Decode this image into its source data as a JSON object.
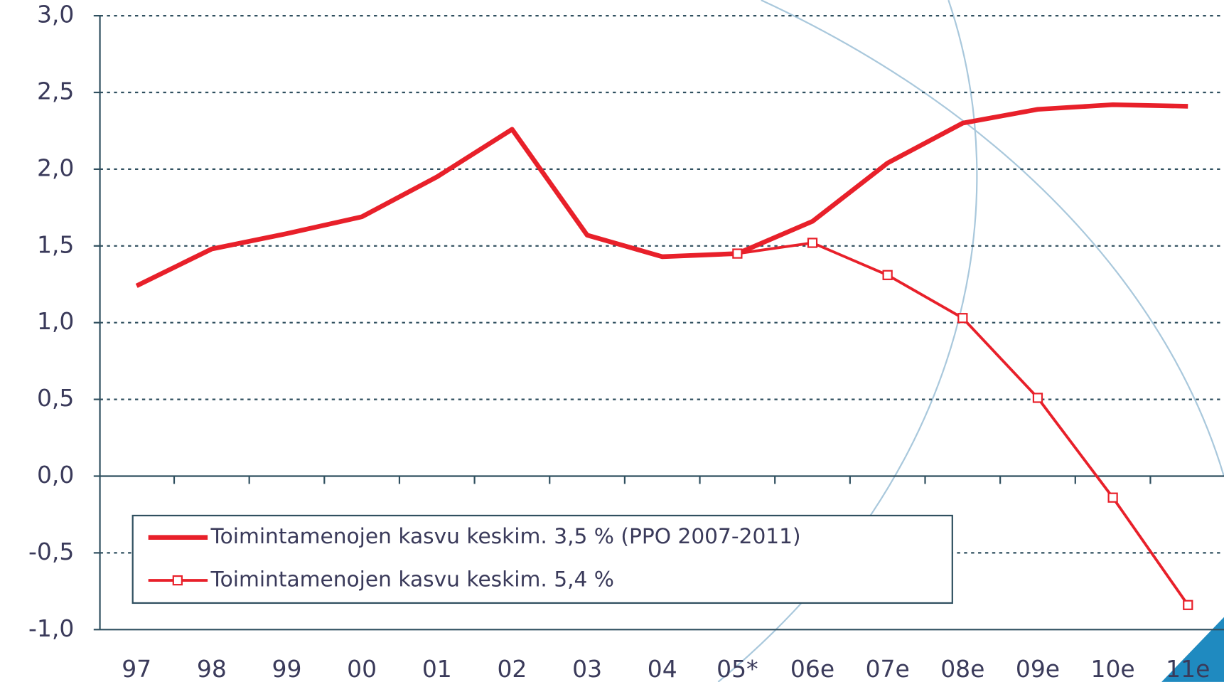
{
  "chart_data": {
    "type": "line",
    "categories": [
      "97",
      "98",
      "99",
      "00",
      "01",
      "02",
      "03",
      "04",
      "05*",
      "06e",
      "07e",
      "08e",
      "09e",
      "10e",
      "11e"
    ],
    "series": [
      {
        "name": "Toimintamenojen kasvu keskim. 3,5 % (PPO 2007-2011)",
        "color": "#e8202a",
        "marker": "none",
        "values": [
          1.24,
          1.48,
          1.58,
          1.69,
          1.95,
          2.26,
          1.57,
          1.43,
          1.45,
          1.66,
          2.04,
          2.3,
          2.39,
          2.42,
          2.41
        ]
      },
      {
        "name": "Toimintamenojen kasvu keskim. 5,4 %",
        "color": "#e8202a",
        "marker": "square",
        "values": [
          null,
          null,
          null,
          null,
          null,
          null,
          null,
          null,
          1.45,
          1.52,
          1.31,
          1.03,
          0.51,
          -0.14,
          -0.84
        ]
      }
    ],
    "ylim": [
      -1,
      3
    ],
    "yticks": [
      {
        "value": -1,
        "label": "-1,0"
      },
      {
        "value": -0.5,
        "label": "-0,5"
      },
      {
        "value": 0,
        "label": "0,0"
      },
      {
        "value": 0.5,
        "label": "0,5"
      },
      {
        "value": 1,
        "label": "1,0"
      },
      {
        "value": 1.5,
        "label": "1,5"
      },
      {
        "value": 2,
        "label": "2,0"
      },
      {
        "value": 2.5,
        "label": "2,5"
      },
      {
        "value": 3,
        "label": "3,0"
      }
    ],
    "grid": true,
    "legend": "lower left"
  }
}
